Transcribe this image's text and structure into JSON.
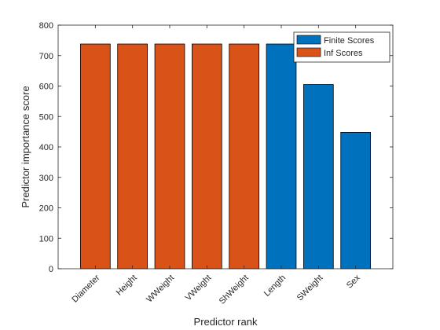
{
  "chart_data": {
    "type": "bar",
    "title": "",
    "xlabel": "Predictor rank",
    "ylabel": "Predictor importance score",
    "ylim": [
      0,
      800
    ],
    "yticks": [
      0,
      100,
      200,
      300,
      400,
      500,
      600,
      700,
      800
    ],
    "categories": [
      "Diameter",
      "Height",
      "WWeight",
      "VWeight",
      "ShWeight",
      "Length",
      "SWeight",
      "Sex"
    ],
    "values": [
      738,
      738,
      738,
      738,
      738,
      738,
      605,
      448
    ],
    "bar_series": [
      "Inf Scores",
      "Inf Scores",
      "Inf Scores",
      "Inf Scores",
      "Inf Scores",
      "Finite Scores",
      "Finite Scores",
      "Finite Scores"
    ],
    "series": [
      {
        "name": "Finite Scores",
        "color": "#0072BD"
      },
      {
        "name": "Inf Scores",
        "color": "#D95319"
      }
    ],
    "legend_position": "top-right",
    "grid": false
  }
}
